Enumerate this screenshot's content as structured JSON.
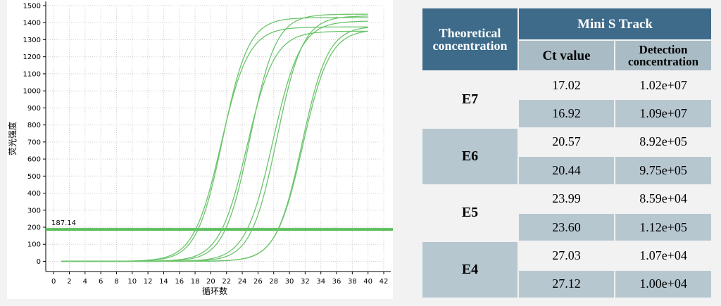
{
  "chart_data": {
    "type": "line",
    "title": "",
    "xlabel": "循环数",
    "ylabel": "荧光强度",
    "xlim": [
      -1,
      42
    ],
    "ylim": [
      -60,
      1500
    ],
    "x_ticks": [
      0,
      2,
      4,
      6,
      8,
      10,
      12,
      14,
      16,
      18,
      20,
      22,
      24,
      26,
      28,
      30,
      32,
      34,
      36,
      38,
      40,
      42
    ],
    "y_ticks": [
      0,
      100,
      200,
      300,
      400,
      500,
      600,
      700,
      800,
      900,
      1000,
      1100,
      1200,
      1300,
      1400,
      1500
    ],
    "threshold": {
      "value": 187.14,
      "label": "187.14"
    },
    "grid": true,
    "series": [
      {
        "curve": {
          "start": 1,
          "end": 40,
          "baseline": 0,
          "plateau": 1430,
          "midpoint": 21.5,
          "slope": 1.65
        }
      },
      {
        "curve": {
          "start": 1,
          "end": 40,
          "baseline": 0,
          "plateau": 1375,
          "midpoint": 21.3,
          "slope": 1.75
        }
      },
      {
        "curve": {
          "start": 1,
          "end": 40,
          "baseline": 0,
          "plateau": 1450,
          "midpoint": 25.0,
          "slope": 1.65
        }
      },
      {
        "curve": {
          "start": 1,
          "end": 40,
          "baseline": 0,
          "plateau": 1350,
          "midpoint": 24.6,
          "slope": 1.75
        }
      },
      {
        "curve": {
          "start": 1,
          "end": 40,
          "baseline": 0,
          "plateau": 1440,
          "midpoint": 28.4,
          "slope": 1.65
        }
      },
      {
        "curve": {
          "start": 1,
          "end": 40,
          "baseline": 0,
          "plateau": 1410,
          "midpoint": 27.9,
          "slope": 1.75
        }
      },
      {
        "curve": {
          "start": 1,
          "end": 40,
          "baseline": 0,
          "plateau": 1380,
          "midpoint": 31.6,
          "slope": 1.65
        }
      },
      {
        "curve": {
          "start": 1,
          "end": 40,
          "baseline": 0,
          "plateau": 1360,
          "midpoint": 31.7,
          "slope": 1.7
        }
      }
    ],
    "colors": {
      "curve": "#6cc46c",
      "threshold": "#5cbf5c",
      "grid": "#cfcfcf",
      "axis": "#000000"
    }
  },
  "table": {
    "header_theoretical": "Theoretical concentration",
    "header_group": "Mini S Track",
    "header_ct": "Ct value",
    "header_detection": "Detection concentration",
    "groups": [
      {
        "label": "E7",
        "rows": [
          {
            "ct": "17.02",
            "conc": "1.02e+07"
          },
          {
            "ct": "16.92",
            "conc": "1.09e+07"
          }
        ]
      },
      {
        "label": "E6",
        "rows": [
          {
            "ct": "20.57",
            "conc": "8.92e+05"
          },
          {
            "ct": "20.44",
            "conc": "9.75e+05"
          }
        ]
      },
      {
        "label": "E5",
        "rows": [
          {
            "ct": "23.99",
            "conc": "8.59e+04"
          },
          {
            "ct": "23.60",
            "conc": "1.12e+05"
          }
        ]
      },
      {
        "label": "E4",
        "rows": [
          {
            "ct": "27.03",
            "conc": "1.07e+04"
          },
          {
            "ct": "27.12",
            "conc": "1.00e+04"
          }
        ]
      }
    ],
    "colors": {
      "header": "#3e6b8a",
      "subheader": "#a9bcc6",
      "band_light": "#f2f2f2",
      "band_dark": "#b7c7d0"
    }
  }
}
